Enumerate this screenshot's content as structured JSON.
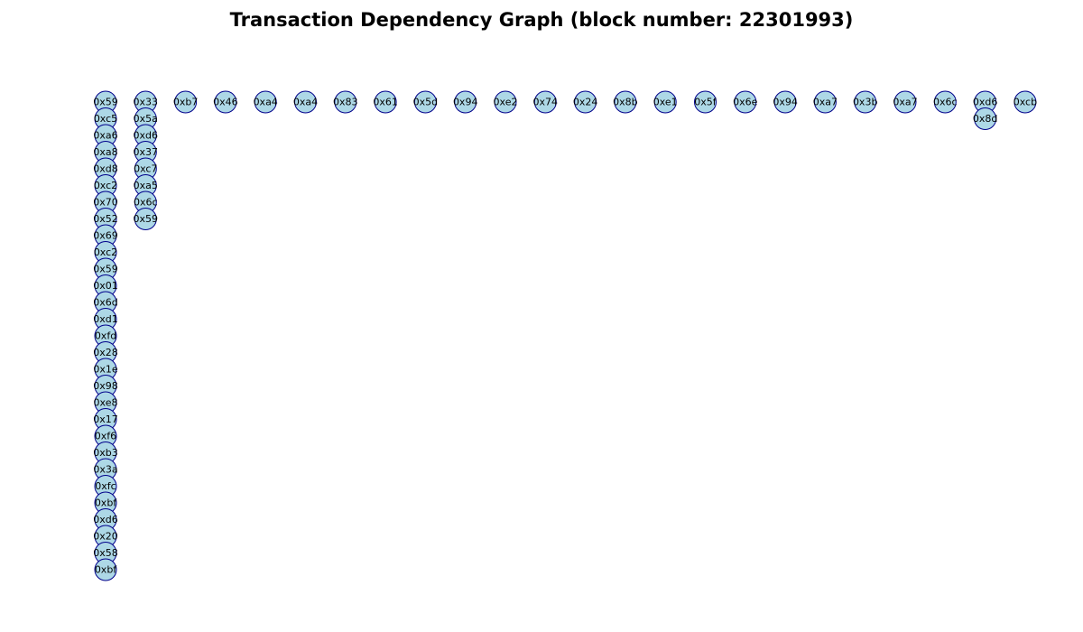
{
  "title": "Transaction Dependency Graph (block number: 22301993)",
  "colors": {
    "node_fill": "#add8e6",
    "node_edge": "#00008b",
    "background": "#ffffff"
  },
  "columns": [
    [
      "0x59",
      "0xc5",
      "0xa6",
      "0xa8",
      "0xd8",
      "0xc2",
      "0x70",
      "0x52",
      "0x69",
      "0xc2",
      "0x59",
      "0x01",
      "0x6d",
      "0xd1",
      "0xfd",
      "0x28",
      "0x1e",
      "0x98",
      "0xe8",
      "0x17",
      "0xf6",
      "0xb3",
      "0x3a",
      "0xfc",
      "0xbf",
      "0xd6",
      "0x20",
      "0x58",
      "0xbf"
    ],
    [
      "0x33",
      "0x5a",
      "0xd6",
      "0x37",
      "0xc7",
      "0xa5",
      "0x6c",
      "0x59"
    ],
    [
      "0xb7"
    ],
    [
      "0x46"
    ],
    [
      "0xa4"
    ],
    [
      "0xa4"
    ],
    [
      "0x83"
    ],
    [
      "0x61"
    ],
    [
      "0x5d"
    ],
    [
      "0x94"
    ],
    [
      "0xe2"
    ],
    [
      "0x74"
    ],
    [
      "0x24"
    ],
    [
      "0x8b"
    ],
    [
      "0xe1"
    ],
    [
      "0x5f"
    ],
    [
      "0x6e"
    ],
    [
      "0x94"
    ],
    [
      "0xa7"
    ],
    [
      "0x3b"
    ],
    [
      "0xa7"
    ],
    [
      "0x6c"
    ],
    [
      "0xd6",
      "0x8d"
    ],
    [
      "0xcb"
    ]
  ]
}
